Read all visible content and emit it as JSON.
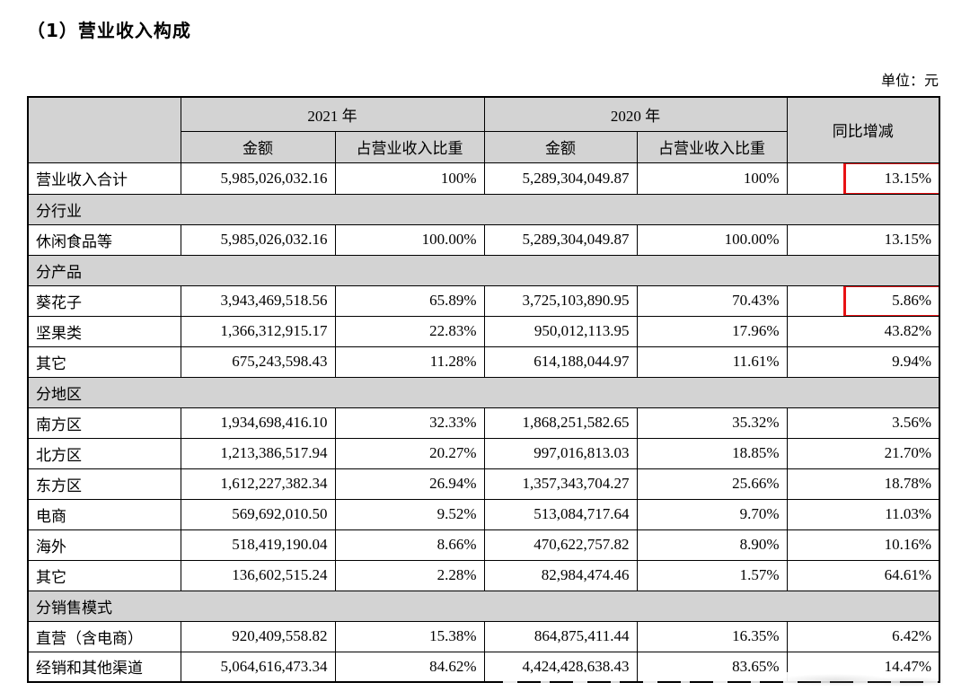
{
  "page": {
    "title": "（1）营业收入构成",
    "unit_label": "单位：元"
  },
  "table": {
    "header": {
      "year_2021": "2021 年",
      "year_2020": "2020 年",
      "yoy_label": "同比增减",
      "amount_label_2021": "金额",
      "share_label_2021": "占营业收入比重",
      "amount_label_2020": "金额",
      "share_label_2020": "占营业收入比重"
    },
    "highlight_color": "#e81214",
    "rows": [
      {
        "type": "data",
        "label": "营业收入合计",
        "values": [
          "5,985,026,032.16",
          "100%",
          "5,289,304,049.87",
          "100%",
          "13.15%"
        ],
        "label_gray": true,
        "highlight": true
      },
      {
        "type": "section",
        "label": "分行业"
      },
      {
        "type": "data",
        "label": "休闲食品等",
        "values": [
          "5,985,026,032.16",
          "100.00%",
          "5,289,304,049.87",
          "100.00%",
          "13.15%"
        ]
      },
      {
        "type": "section",
        "label": "分产品"
      },
      {
        "type": "data",
        "label": "葵花子",
        "values": [
          "3,943,469,518.56",
          "65.89%",
          "3,725,103,890.95",
          "70.43%",
          "5.86%"
        ],
        "highlight": true
      },
      {
        "type": "data",
        "label": "坚果类",
        "values": [
          "1,366,312,915.17",
          "22.83%",
          "950,012,113.95",
          "17.96%",
          "43.82%"
        ]
      },
      {
        "type": "data",
        "label": "其它",
        "values": [
          "675,243,598.43",
          "11.28%",
          "614,188,044.97",
          "11.61%",
          "9.94%"
        ]
      },
      {
        "type": "section",
        "label": "分地区"
      },
      {
        "type": "data",
        "label": "南方区",
        "values": [
          "1,934,698,416.10",
          "32.33%",
          "1,868,251,582.65",
          "35.32%",
          "3.56%"
        ]
      },
      {
        "type": "data",
        "label": "北方区",
        "values": [
          "1,213,386,517.94",
          "20.27%",
          "997,016,813.03",
          "18.85%",
          "21.70%"
        ]
      },
      {
        "type": "data",
        "label": "东方区",
        "values": [
          "1,612,227,382.34",
          "26.94%",
          "1,357,343,704.27",
          "25.66%",
          "18.78%"
        ]
      },
      {
        "type": "data",
        "label": "电商",
        "values": [
          "569,692,010.50",
          "9.52%",
          "513,084,717.64",
          "9.70%",
          "11.03%"
        ]
      },
      {
        "type": "data",
        "label": "海外",
        "values": [
          "518,419,190.04",
          "8.66%",
          "470,622,757.82",
          "8.90%",
          "10.16%"
        ]
      },
      {
        "type": "data",
        "label": "其它",
        "values": [
          "136,602,515.24",
          "2.28%",
          "82,984,474.46",
          "1.57%",
          "64.61%"
        ]
      },
      {
        "type": "section",
        "label": "分销售模式"
      },
      {
        "type": "data",
        "label": "直营（含电商）",
        "values": [
          "920,409,558.82",
          "15.38%",
          "864,875,411.44",
          "16.35%",
          "6.42%"
        ]
      },
      {
        "type": "data",
        "label": "经销和其他渠道",
        "values": [
          "5,064,616,473.34",
          "84.62%",
          "4,424,428,638.43",
          "83.65%",
          "14.47%"
        ]
      }
    ]
  }
}
